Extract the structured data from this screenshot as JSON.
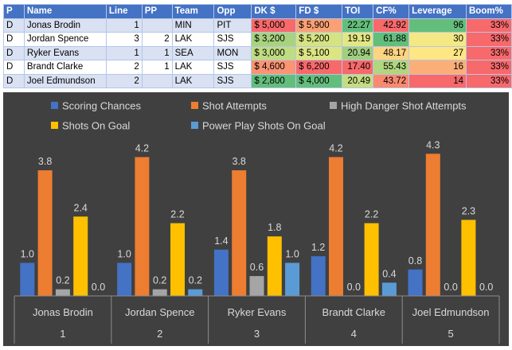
{
  "table": {
    "headers": [
      "P",
      "Name",
      "Line",
      "PP",
      "Team",
      "Opp",
      "DK $",
      "FD $",
      "TOI",
      "CF%",
      "Leverage",
      "Boom%"
    ],
    "rows": [
      {
        "p": "D",
        "name": "Jonas Brodin",
        "line": "1",
        "pp": "",
        "team": "MIN",
        "opp": "PIT",
        "dk": "$ 5,000",
        "fd": "$ 5,900",
        "toi": "22.27",
        "cf": "42.92",
        "leverage": "96",
        "boom": "33%"
      },
      {
        "p": "D",
        "name": "Jordan Spence",
        "line": "3",
        "pp": "2",
        "team": "LAK",
        "opp": "SJS",
        "dk": "$ 3,200",
        "fd": "$ 5,200",
        "toi": "19.19",
        "cf": "61.88",
        "leverage": "30",
        "boom": "33%"
      },
      {
        "p": "D",
        "name": "Ryker Evans",
        "line": "1",
        "pp": "1",
        "team": "SEA",
        "opp": "MON",
        "dk": "$ 3,000",
        "fd": "$ 5,100",
        "toi": "20.94",
        "cf": "48.17",
        "leverage": "27",
        "boom": "33%"
      },
      {
        "p": "D",
        "name": "Brandt Clarke",
        "line": "2",
        "pp": "1",
        "team": "LAK",
        "opp": "SJS",
        "dk": "$ 4,600",
        "fd": "$ 6,200",
        "toi": "17.40",
        "cf": "55.43",
        "leverage": "16",
        "boom": "33%"
      },
      {
        "p": "D",
        "name": "Joel Edmundson",
        "line": "2",
        "pp": "",
        "team": "LAK",
        "opp": "SJS",
        "dk": "$ 2,800",
        "fd": "$ 4,000",
        "toi": "20.49",
        "cf": "43.72",
        "leverage": "14",
        "boom": "33%"
      }
    ],
    "cell_colors": {
      "dk": [
        "#f8696b",
        "#a9d27f",
        "#bfdc80",
        "#fa9473",
        "#63be7b"
      ],
      "fd": [
        "#faa075",
        "#d5e382",
        "#dde583",
        "#f8696b",
        "#63be7b"
      ],
      "toi": [
        "#63be7b",
        "#e3e783",
        "#a0cf7e",
        "#f8696b",
        "#c5dd81"
      ],
      "cf": [
        "#f8696b",
        "#63be7b",
        "#fed481",
        "#b2d57f",
        "#f98a70"
      ],
      "leverage": [
        "#63be7b",
        "#f3e884",
        "#fde683",
        "#fbae78",
        "#f8696b"
      ],
      "boom": [
        "#f8696b",
        "#f8696b",
        "#f8696b",
        "#f8696b",
        "#f8696b"
      ]
    }
  },
  "chart_data": {
    "type": "bar",
    "categories": [
      "Jonas Brodin",
      "Jordan Spence",
      "Ryker Evans",
      "Brandt Clarke",
      "Joel Edmundson"
    ],
    "category_numbers": [
      "1",
      "2",
      "3",
      "4",
      "5"
    ],
    "series": [
      {
        "name": "Scoring Chances",
        "color": "#4472c4",
        "values": [
          1.0,
          1.0,
          1.4,
          1.2,
          0.8
        ]
      },
      {
        "name": "Shot Attempts",
        "color": "#ed7d31",
        "values": [
          3.8,
          4.2,
          3.8,
          4.2,
          4.3
        ]
      },
      {
        "name": "High Danger Shot Attempts",
        "color": "#a5a5a5",
        "values": [
          0.2,
          0.2,
          0.6,
          0.0,
          0.0
        ]
      },
      {
        "name": "Shots On Goal",
        "color": "#ffc000",
        "values": [
          2.4,
          2.2,
          1.8,
          2.2,
          2.3
        ]
      },
      {
        "name": "Power Play Shots On Goal",
        "color": "#5b9bd5",
        "values": [
          0.0,
          0.2,
          1.0,
          0.4,
          0.0
        ]
      }
    ],
    "ylim": [
      0,
      4.5
    ],
    "value_format": "0.0",
    "legend_position": "top",
    "background": "#404040",
    "label_color": "#d9d9d9"
  }
}
